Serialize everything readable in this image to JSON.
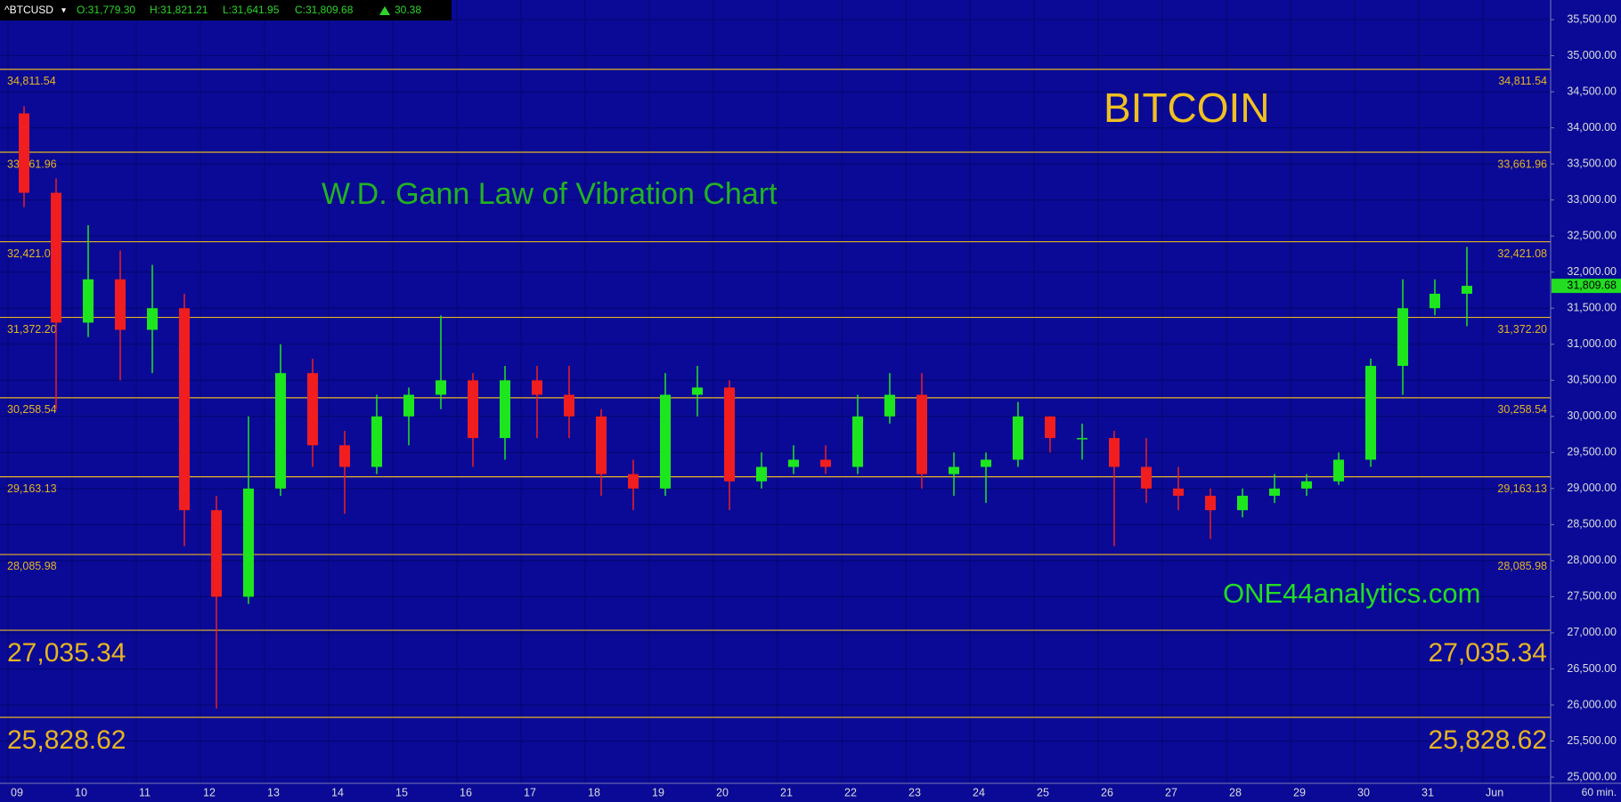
{
  "chart_data": {
    "type": "candlestick",
    "header": {
      "symbol": "^BTCUSD",
      "open": "O:31,779.30",
      "high": "H:31,821.21",
      "low": "L:31,641.95",
      "close": "C:31,809.68",
      "change": "30.38"
    },
    "title": "BITCOIN",
    "subtitle": "W.D. Gann Law of Vibration Chart",
    "annotation": "ONE44analytics.com",
    "interval": "60 min.",
    "categories": [
      "09",
      null,
      "10",
      null,
      "11",
      null,
      "12",
      null,
      "13",
      null,
      "14",
      null,
      "15",
      null,
      "16",
      null,
      "17",
      null,
      "18",
      null,
      "19",
      null,
      "20",
      null,
      "21",
      null,
      "22",
      null,
      "23",
      null,
      "24",
      null,
      "25",
      null,
      "26",
      null,
      "27",
      null,
      "28",
      null,
      "29",
      null,
      "30",
      null,
      "31",
      null,
      "Jun"
    ],
    "open": [
      34200,
      33100,
      31300,
      31900,
      31200,
      31500,
      28700,
      27500,
      29000,
      30600,
      29600,
      29300,
      30000,
      30300,
      30500,
      29700,
      30500,
      30300,
      30000,
      29200,
      29000,
      30300,
      30400,
      29100,
      29300,
      29400,
      29300,
      30000,
      30300,
      29200,
      29300,
      29400,
      30000,
      29700,
      29700,
      29300,
      29000,
      28900,
      28700,
      28900,
      29000,
      29100,
      29400,
      30700,
      31500,
      31700,
      null
    ],
    "high": [
      34300,
      33300,
      32650,
      32300,
      32100,
      31700,
      28900,
      30000,
      31000,
      30800,
      29800,
      30300,
      30400,
      31400,
      30600,
      30700,
      30700,
      30700,
      30100,
      29400,
      30600,
      30700,
      30500,
      29500,
      29600,
      29600,
      30300,
      30600,
      30600,
      29500,
      29500,
      30200,
      30000,
      29900,
      29800,
      29700,
      29300,
      29000,
      29000,
      29200,
      29200,
      29500,
      30800,
      31900,
      31900,
      32350,
      null
    ],
    "low": [
      32900,
      30100,
      31100,
      30500,
      30600,
      28200,
      25950,
      27400,
      28900,
      29300,
      28650,
      29200,
      29600,
      30100,
      29300,
      29400,
      29700,
      29700,
      28900,
      28700,
      28900,
      30000,
      28700,
      29000,
      29200,
      29200,
      29200,
      29900,
      29000,
      28900,
      28800,
      29300,
      29500,
      29400,
      28200,
      28800,
      28700,
      28300,
      28600,
      28800,
      28900,
      29050,
      29300,
      30300,
      31400,
      31250,
      null
    ],
    "close": [
      33100,
      31300,
      31900,
      31200,
      31500,
      28700,
      27500,
      29000,
      30600,
      29600,
      29300,
      30000,
      30300,
      30500,
      29700,
      30500,
      30300,
      30000,
      29200,
      29000,
      30300,
      30400,
      29100,
      29300,
      29400,
      29300,
      30000,
      30300,
      29200,
      29300,
      29400,
      30000,
      29700,
      29700,
      29300,
      29000,
      28900,
      28700,
      28900,
      29000,
      29100,
      29400,
      30700,
      31500,
      31700,
      31809.68,
      null
    ],
    "up_color": "#1ee61e",
    "down_color": "#f01e1e",
    "levels": [
      {
        "value": 34811.54,
        "label": "34,811.54"
      },
      {
        "value": 33661.96,
        "label": "33,661.96"
      },
      {
        "value": 32421.08,
        "label": "32,421.08"
      },
      {
        "value": 31372.2,
        "label": "31,372.20"
      },
      {
        "value": 30258.54,
        "label": "30,258.54"
      },
      {
        "value": 29163.13,
        "label": "29,163.13"
      },
      {
        "value": 28085.98,
        "label": "28,085.98"
      },
      {
        "value": 27035.34,
        "label": "27,035.34"
      },
      {
        "value": 25828.62,
        "label": "25,828.62"
      }
    ],
    "level_color": "#e6b422",
    "last_price": {
      "value": 31809.68,
      "label": "31,809.68"
    },
    "ylim": [
      24914,
      35772
    ],
    "yticks": [
      {
        "value": 25000,
        "label": "25,000.00"
      },
      {
        "value": 25500,
        "label": "25,500.00"
      },
      {
        "value": 26000,
        "label": "26,000.00"
      },
      {
        "value": 26500,
        "label": "26,500.00"
      },
      {
        "value": 27000,
        "label": "27,000.00"
      },
      {
        "value": 27500,
        "label": "27,500.00"
      },
      {
        "value": 28000,
        "label": "28,000.00"
      },
      {
        "value": 28500,
        "label": "28,500.00"
      },
      {
        "value": 29000,
        "label": "29,000.00"
      },
      {
        "value": 29500,
        "label": "29,500.00"
      },
      {
        "value": 30000,
        "label": "30,000.00"
      },
      {
        "value": 30500,
        "label": "30,500.00"
      },
      {
        "value": 31000,
        "label": "31,000.00"
      },
      {
        "value": 31500,
        "label": "31,500.00"
      },
      {
        "value": 32000,
        "label": "32,000.00"
      },
      {
        "value": 32500,
        "label": "32,500.00"
      },
      {
        "value": 33000,
        "label": "33,000.00"
      },
      {
        "value": 33500,
        "label": "33,500.00"
      },
      {
        "value": 34000,
        "label": "34,000.00"
      },
      {
        "value": 34500,
        "label": "34,500.00"
      },
      {
        "value": 35000,
        "label": "35,000.00"
      },
      {
        "value": 35500,
        "label": "35,500.00"
      }
    ],
    "grid": true
  }
}
